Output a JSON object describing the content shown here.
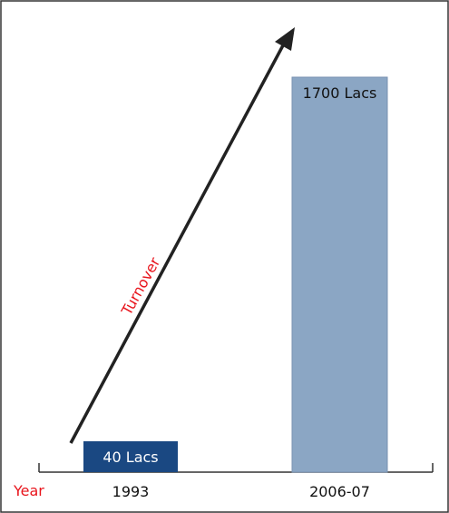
{
  "chart_data": {
    "type": "bar",
    "categories": [
      "1993",
      "2006-07"
    ],
    "values": [
      40,
      1700
    ],
    "value_labels": [
      "40 Lacs",
      "1700 Lacs"
    ],
    "ylim": [
      0,
      1700
    ],
    "xlabel": "Year",
    "annotation": "Turnover",
    "grid": false,
    "legend": "none",
    "colors": {
      "bar_1993": "#1a4882",
      "bar_2006": "#8ba6c4",
      "bar_2006_border": "#7892b2",
      "label_1993": "#ffffff",
      "label_2006": "#111111",
      "axis": "#333333",
      "xlabel": "#e8141c",
      "annotation": "#e8141c",
      "arrow": "#222222",
      "frame": "#333333"
    }
  }
}
